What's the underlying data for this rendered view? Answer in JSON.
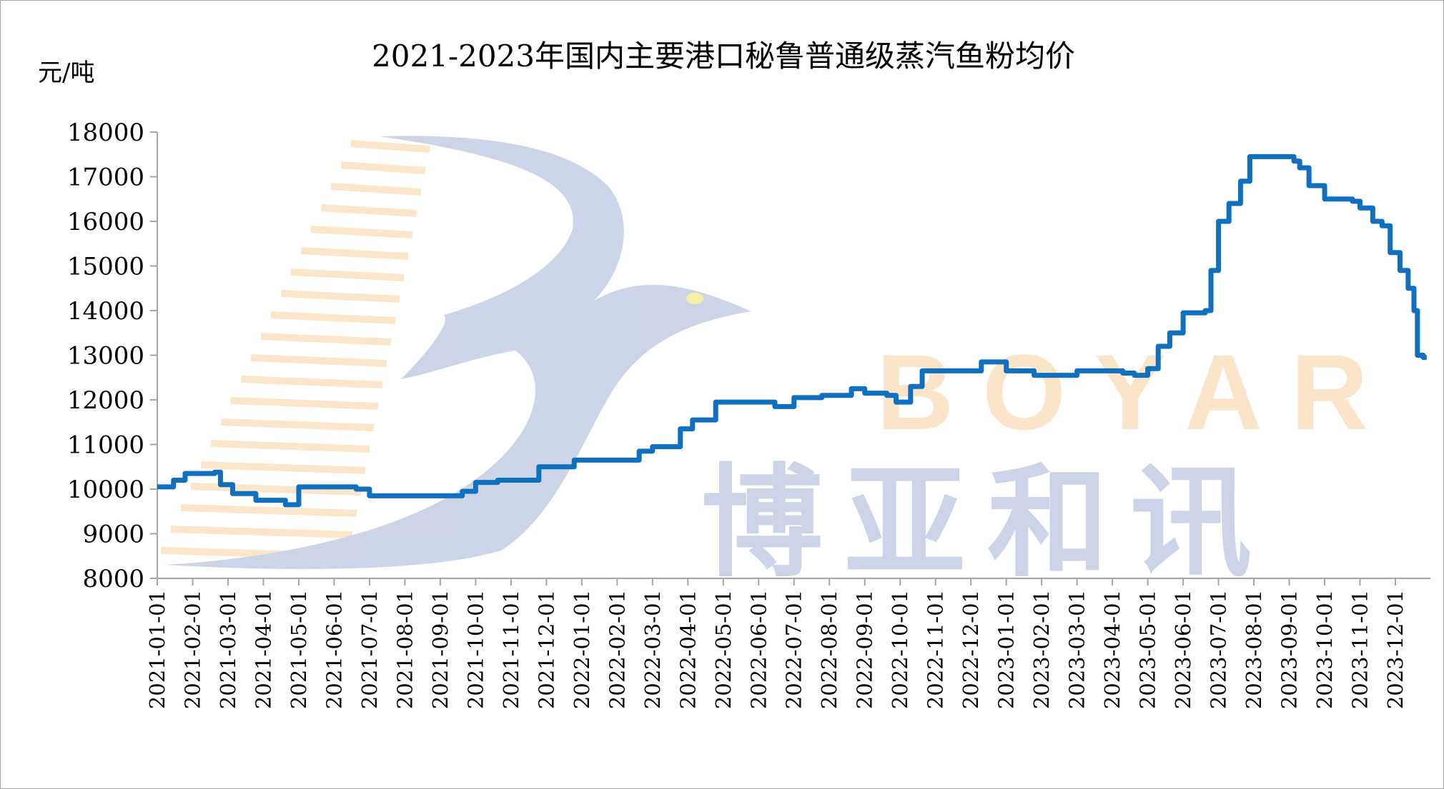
{
  "chart_data": {
    "type": "line",
    "title": "2021-2023年国内主要港口秘鲁普通级蒸汽鱼粉均价",
    "ylabel": "元/吨",
    "xlabel": "",
    "ylim": [
      8000,
      18000
    ],
    "yticks": [
      8000,
      9000,
      10000,
      11000,
      12000,
      13000,
      14000,
      15000,
      16000,
      17000,
      18000
    ],
    "xticks": [
      "2021-01-01",
      "2021-02-01",
      "2021-03-01",
      "2021-04-01",
      "2021-05-01",
      "2021-06-01",
      "2021-07-01",
      "2021-08-01",
      "2021-09-01",
      "2021-10-01",
      "2021-11-01",
      "2021-12-01",
      "2022-01-01",
      "2022-02-01",
      "2022-03-01",
      "2022-04-01",
      "2022-05-01",
      "2022-06-01",
      "2022-07-01",
      "2022-08-01",
      "2022-09-01",
      "2022-10-01",
      "2022-11-01",
      "2022-12-01",
      "2023-01-01",
      "2023-02-01",
      "2023-03-01",
      "2023-04-01",
      "2023-05-01",
      "2023-06-01",
      "2023-07-01",
      "2023-08-01",
      "2023-09-01",
      "2023-10-01",
      "2023-11-01",
      "2023-12-01"
    ],
    "grid": false,
    "line_color": "#1070c0",
    "series": [
      {
        "x": [
          "2021-01-01",
          "2021-01-10",
          "2021-01-15",
          "2021-01-25",
          "2021-02-20",
          "2021-02-25",
          "2021-03-05",
          "2021-03-25",
          "2021-04-20",
          "2021-05-01",
          "2021-06-20",
          "2021-07-01",
          "2021-08-20",
          "2021-09-20",
          "2021-10-01",
          "2021-10-20",
          "2021-11-25",
          "2021-12-25",
          "2022-01-25",
          "2022-02-20",
          "2022-03-01",
          "2022-03-25",
          "2022-04-05",
          "2022-04-25",
          "2022-05-25",
          "2022-06-15",
          "2022-07-01",
          "2022-07-25",
          "2022-08-20",
          "2022-09-01",
          "2022-09-20",
          "2022-09-28",
          "2022-10-10",
          "2022-10-20",
          "2022-11-25",
          "2022-12-10",
          "2023-01-01",
          "2023-01-25",
          "2023-02-20",
          "2023-03-01",
          "2023-03-25",
          "2023-04-10",
          "2023-04-20",
          "2023-05-01",
          "2023-05-10",
          "2023-05-20",
          "2023-06-01",
          "2023-06-20",
          "2023-06-25",
          "2023-07-01",
          "2023-07-10",
          "2023-07-20",
          "2023-07-28",
          "2023-08-25",
          "2023-09-05",
          "2023-09-10",
          "2023-09-18",
          "2023-10-01",
          "2023-10-25",
          "2023-11-01",
          "2023-11-12",
          "2023-11-20",
          "2023-11-27",
          "2023-12-05",
          "2023-12-12",
          "2023-12-17",
          "2023-12-20",
          "2023-12-25"
        ],
        "values": [
          10050,
          10050,
          10200,
          10350,
          10380,
          10100,
          9900,
          9750,
          9650,
          10050,
          10000,
          9850,
          9850,
          9950,
          10150,
          10200,
          10500,
          10650,
          10650,
          10850,
          10950,
          11350,
          11550,
          11950,
          11950,
          11850,
          12050,
          12100,
          12250,
          12150,
          12100,
          11950,
          12300,
          12650,
          12650,
          12850,
          12650,
          12550,
          12550,
          12650,
          12650,
          12600,
          12550,
          12700,
          13200,
          13500,
          13950,
          14000,
          14900,
          16000,
          16400,
          16900,
          17450,
          17450,
          17350,
          17200,
          16800,
          16500,
          16450,
          16300,
          16000,
          15900,
          15300,
          14900,
          14500,
          14000,
          13000,
          12950
        ]
      }
    ]
  },
  "watermark": {
    "latin": "BOYAR",
    "chinese": "博亚和讯"
  }
}
